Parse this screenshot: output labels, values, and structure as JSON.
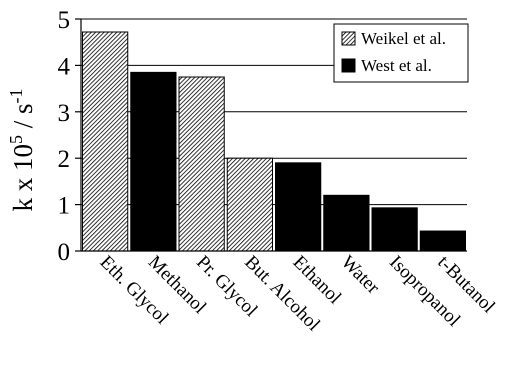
{
  "chart_data": {
    "type": "bar",
    "categories": [
      "Eth. Glycol",
      "Methanol",
      "Pr. Glycol",
      "But. Alcohol",
      "Ethanol",
      "Water",
      "Isopropanol",
      "t-Butanol"
    ],
    "values": [
      4.72,
      3.85,
      3.75,
      2.0,
      1.9,
      1.2,
      0.93,
      0.43
    ],
    "series_membership": [
      "Weikel et al.",
      "West et al.",
      "Weikel et al.",
      "Weikel et al.",
      "West et al.",
      "West et al.",
      "West et al.",
      "West et al."
    ],
    "series": [
      {
        "name": "Weikel et al.",
        "pattern": "hatched"
      },
      {
        "name": "West et al.",
        "pattern": "solid"
      }
    ],
    "ylabel": {
      "main": "k x 10",
      "exp1": "5",
      "mid": " / s",
      "exp2": "-1"
    },
    "ylim": [
      0,
      5
    ],
    "yticks": [
      0,
      1,
      2,
      3,
      4,
      5
    ],
    "grid": true,
    "legend_position": "top-right",
    "colors": {
      "bar": "#000000",
      "grid": "#000000",
      "background": "#ffffff"
    }
  }
}
